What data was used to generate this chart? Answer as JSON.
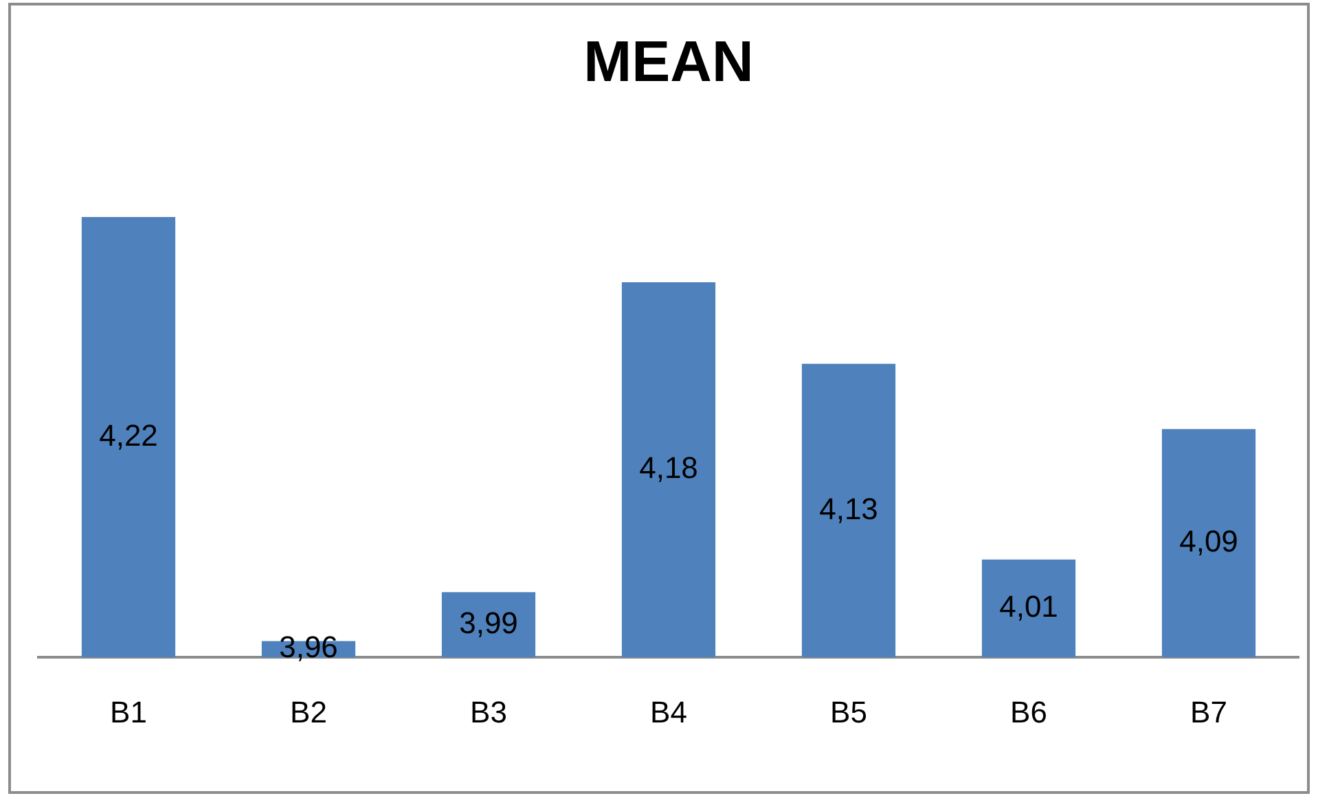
{
  "chart_data": {
    "type": "bar",
    "title": "MEAN",
    "categories": [
      "B1",
      "B2",
      "B3",
      "B4",
      "B5",
      "B6",
      "B7"
    ],
    "values": [
      4.22,
      3.96,
      3.99,
      4.18,
      4.13,
      4.01,
      4.09
    ],
    "value_labels": [
      "4,22",
      "3,96",
      "3,99",
      "4,18",
      "4,13",
      "4,01",
      "4,09"
    ],
    "color": "#4f81bd",
    "tick_labels": "x",
    "grid": false,
    "legend": false
  }
}
